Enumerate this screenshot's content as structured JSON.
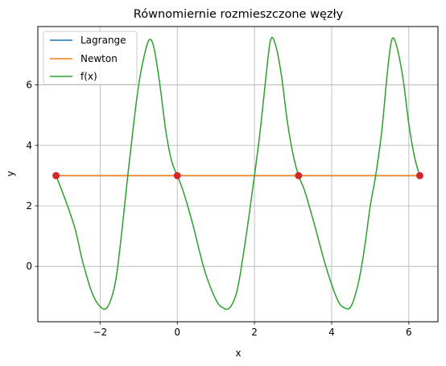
{
  "chart_data": {
    "type": "line",
    "title": "Równomiernie rozmieszczone węzły",
    "xlabel": "x",
    "ylabel": "y",
    "xlim": [
      -3.613,
      6.754
    ],
    "ylim": [
      -1.83,
      7.93
    ],
    "xticks": [
      -2,
      0,
      2,
      4,
      6
    ],
    "xtick_labels": [
      "−2",
      "0",
      "2",
      "4",
      "6"
    ],
    "yticks": [
      0,
      2,
      4,
      6
    ],
    "ytick_labels": [
      "0",
      "2",
      "4",
      "6"
    ],
    "grid": true,
    "legend": {
      "placement": "top-left",
      "entries": [
        "Lagrange",
        "Newton",
        "f(x)"
      ]
    },
    "series": [
      {
        "name": "Lagrange",
        "color": "#1f77b4",
        "x": [
          -3.1416,
          6.2832
        ],
        "y": [
          3,
          3
        ]
      },
      {
        "name": "Newton",
        "color": "#ff7f0e",
        "x": [
          -3.1416,
          6.2832
        ],
        "y": [
          3,
          3
        ]
      },
      {
        "name": "f(x)",
        "color": "#2ca02c",
        "x": [
          -3.1416,
          -2.9,
          -2.65,
          -2.45,
          -2.2,
          -1.95,
          -1.78,
          -1.6,
          -1.45,
          -1.3,
          -1.15,
          -1.0,
          -0.85,
          -0.72,
          -0.6,
          -0.45,
          -0.3,
          -0.15,
          0.0,
          0.15,
          0.4,
          0.7,
          1.0,
          1.2,
          1.37,
          1.55,
          1.7,
          1.85,
          2.0,
          2.15,
          2.3,
          2.42,
          2.55,
          2.7,
          2.85,
          3.0,
          3.1416,
          3.3,
          3.55,
          3.85,
          4.15,
          4.35,
          4.51,
          4.7,
          4.85,
          5.0,
          5.14,
          5.3,
          5.45,
          5.56,
          5.68,
          5.85,
          6.0,
          6.15,
          6.2832
        ],
        "y": [
          3.0,
          2.2,
          1.25,
          0.15,
          -0.9,
          -1.38,
          -1.28,
          -0.5,
          1.0,
          2.8,
          4.5,
          6.0,
          7.0,
          7.5,
          7.2,
          6.0,
          4.5,
          3.5,
          3.0,
          2.5,
          1.4,
          -0.1,
          -1.1,
          -1.38,
          -1.35,
          -0.8,
          0.3,
          1.6,
          3.0,
          4.5,
          6.3,
          7.5,
          7.3,
          6.3,
          4.8,
          3.7,
          3.0,
          2.5,
          1.4,
          0.0,
          -1.1,
          -1.38,
          -1.3,
          -0.5,
          0.6,
          2.0,
          3.0,
          4.5,
          6.5,
          7.5,
          7.3,
          6.2,
          4.7,
          3.6,
          3.0
        ]
      }
    ],
    "nodes": {
      "color": "#d62728",
      "x": [
        -3.1416,
        0.0,
        3.1416,
        6.2832
      ],
      "y": [
        3,
        3,
        3,
        3
      ]
    }
  }
}
